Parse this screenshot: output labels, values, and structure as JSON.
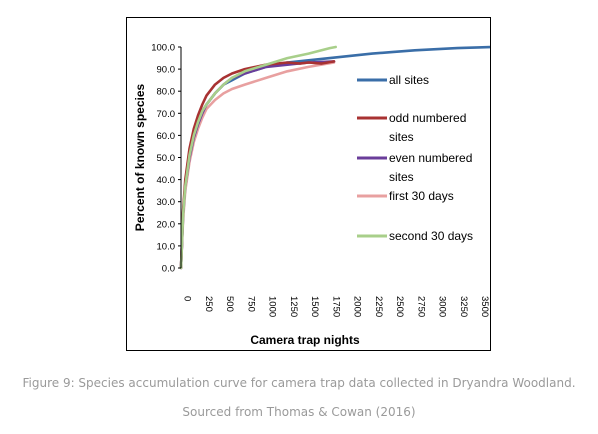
{
  "caption": {
    "figure": "Figure 9: Species accumulation curve for camera trap data collected in Dryandra Woodland.",
    "source": "Sourced from  Thomas & Cowan (2016)"
  },
  "chart_data": {
    "type": "line",
    "xlabel": "Camera trap nights",
    "ylabel": "Percent of known species",
    "xlim": [
      0,
      3600
    ],
    "ylim": [
      0,
      100
    ],
    "x_ticks": [
      "0",
      "250",
      "500",
      "750",
      "1000",
      "1250",
      "1500",
      "1750",
      "2000",
      "2250",
      "2500",
      "2750",
      "3000",
      "3250",
      "3500"
    ],
    "x_tick_values": [
      0,
      250,
      500,
      750,
      1000,
      1250,
      1500,
      1750,
      2000,
      2250,
      2500,
      2750,
      3000,
      3250,
      3500
    ],
    "y_ticks": [
      "0.0",
      "10.0",
      "20.0",
      "30.0",
      "40.0",
      "50.0",
      "60.0",
      "70.0",
      "80.0",
      "90.0",
      "100.0"
    ],
    "y_tick_values": [
      0,
      10,
      20,
      30,
      40,
      50,
      60,
      70,
      80,
      90,
      100
    ],
    "grid": false,
    "legend_position": "right",
    "series": [
      {
        "name": "all sites",
        "color": "#3a6ea8",
        "x": [
          0,
          25,
          50,
          100,
          150,
          200,
          250,
          300,
          400,
          500,
          600,
          750,
          1000,
          1250,
          1500,
          1750,
          2000,
          2250,
          2500,
          2750,
          3000,
          3250,
          3500,
          3650
        ],
        "y": [
          0,
          25,
          38,
          52,
          60,
          66,
          71,
          74,
          79,
          83,
          85,
          88,
          91,
          93,
          94,
          95,
          96,
          97,
          97.8,
          98.5,
          99,
          99.5,
          99.8,
          100
        ]
      },
      {
        "name": "odd numbered sites",
        "color": "#a83232",
        "x": [
          0,
          25,
          50,
          100,
          150,
          200,
          250,
          300,
          400,
          500,
          600,
          750,
          1000,
          1250,
          1400,
          1500,
          1650,
          1800
        ],
        "y": [
          0,
          26,
          40,
          54,
          63,
          69,
          74,
          78,
          83,
          86,
          88,
          90,
          92,
          93,
          92.5,
          93,
          92.5,
          93.5
        ]
      },
      {
        "name": "even numbered sites",
        "color": "#6a3d9a",
        "x": [
          0,
          25,
          50,
          100,
          150,
          200,
          250,
          300,
          400,
          500,
          600,
          750,
          1000,
          1250,
          1500,
          1800
        ],
        "y": [
          0,
          24,
          37,
          50,
          59,
          65,
          70,
          74,
          79,
          83,
          86,
          88,
          91,
          92,
          93,
          93.5
        ]
      },
      {
        "name": "first 30 days",
        "color": "#e8a0a0",
        "x": [
          0,
          25,
          50,
          100,
          150,
          200,
          250,
          300,
          400,
          500,
          600,
          750,
          1000,
          1250,
          1500,
          1800
        ],
        "y": [
          0,
          22,
          35,
          48,
          57,
          63,
          68,
          72,
          76,
          79,
          81,
          83,
          86,
          89,
          91,
          93
        ]
      },
      {
        "name": "second 30 days",
        "color": "#a8cf8a",
        "x": [
          0,
          25,
          50,
          100,
          150,
          200,
          250,
          300,
          400,
          500,
          600,
          750,
          1000,
          1250,
          1500,
          1750,
          1820
        ],
        "y": [
          0,
          24,
          37,
          51,
          60,
          66,
          71,
          74,
          79,
          83,
          86,
          89,
          92,
          95,
          97,
          99.5,
          100
        ]
      }
    ],
    "legend_labels": [
      [
        "all sites"
      ],
      [
        "odd numbered",
        "sites"
      ],
      [
        "even numbered",
        "sites"
      ],
      [
        "first 30 days"
      ],
      [
        "second 30 days"
      ]
    ]
  }
}
